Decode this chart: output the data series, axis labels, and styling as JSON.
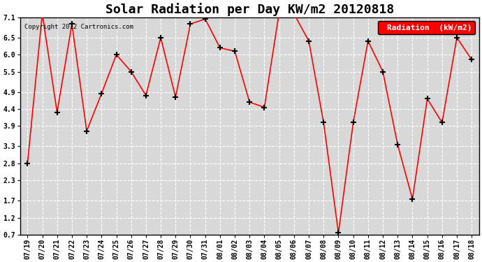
{
  "title": "Solar Radiation per Day KW/m2 20120818",
  "copyright_text": "Copyright 2012 Cartronics.com",
  "legend_label": "Radiation  (kW/m2)",
  "x_labels": [
    "07/19",
    "07/20",
    "07/21",
    "07/22",
    "07/23",
    "07/24",
    "07/25",
    "07/26",
    "07/27",
    "07/28",
    "07/29",
    "07/30",
    "07/31",
    "08/01",
    "08/02",
    "08/03",
    "08/04",
    "08/05",
    "08/06",
    "08/07",
    "08/08",
    "08/09",
    "08/10",
    "08/11",
    "08/12",
    "08/13",
    "08/14",
    "08/15",
    "08/16",
    "08/17",
    "08/18"
  ],
  "y_values": [
    2.8,
    7.2,
    4.3,
    6.9,
    3.75,
    4.85,
    6.0,
    5.5,
    4.8,
    6.5,
    4.75,
    6.9,
    7.05,
    6.2,
    6.1,
    4.6,
    4.45,
    7.25,
    7.2,
    6.4,
    4.0,
    0.75,
    4.0,
    6.4,
    5.5,
    3.35,
    1.75,
    4.7,
    4.0,
    6.5,
    5.85
  ],
  "ylim_min": 0.7,
  "ylim_max": 7.1,
  "yticks": [
    0.7,
    1.2,
    1.7,
    2.3,
    2.8,
    3.3,
    3.9,
    4.4,
    4.9,
    5.5,
    6.0,
    6.5,
    7.1
  ],
  "line_color": "red",
  "marker_color": "black",
  "bg_color": "#ffffff",
  "plot_bg_color": "#d8d8d8",
  "grid_color": "white",
  "title_fontsize": 13,
  "legend_bg": "red",
  "legend_text_color": "white"
}
